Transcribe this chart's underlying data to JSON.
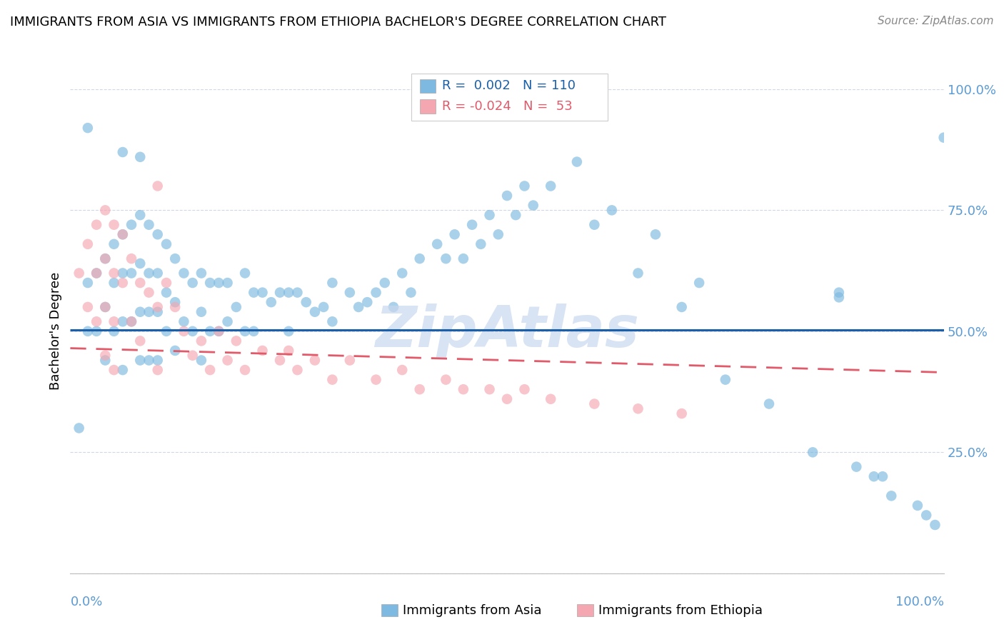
{
  "title": "IMMIGRANTS FROM ASIA VS IMMIGRANTS FROM ETHIOPIA BACHELOR'S DEGREE CORRELATION CHART",
  "source": "Source: ZipAtlas.com",
  "ylabel": "Bachelor's Degree",
  "color_asia": "#7db9e0",
  "color_ethiopia": "#f4a7b0",
  "trendline_asia_color": "#1a5fa8",
  "trendline_ethiopia_color": "#e05a6a",
  "background_color": "#ffffff",
  "watermark": "ZipAtlas",
  "asia_x": [
    0.01,
    0.02,
    0.02,
    0.03,
    0.03,
    0.04,
    0.04,
    0.04,
    0.05,
    0.05,
    0.05,
    0.06,
    0.06,
    0.06,
    0.06,
    0.07,
    0.07,
    0.07,
    0.08,
    0.08,
    0.08,
    0.08,
    0.09,
    0.09,
    0.09,
    0.09,
    0.1,
    0.1,
    0.1,
    0.1,
    0.11,
    0.11,
    0.11,
    0.12,
    0.12,
    0.12,
    0.13,
    0.13,
    0.14,
    0.14,
    0.15,
    0.15,
    0.15,
    0.16,
    0.16,
    0.17,
    0.17,
    0.18,
    0.18,
    0.19,
    0.2,
    0.2,
    0.21,
    0.21,
    0.22,
    0.23,
    0.24,
    0.25,
    0.25,
    0.26,
    0.27,
    0.28,
    0.29,
    0.3,
    0.3,
    0.32,
    0.33,
    0.34,
    0.35,
    0.36,
    0.37,
    0.38,
    0.39,
    0.4,
    0.42,
    0.43,
    0.44,
    0.45,
    0.46,
    0.47,
    0.48,
    0.49,
    0.5,
    0.51,
    0.52,
    0.53,
    0.55,
    0.58,
    0.6,
    0.62,
    0.65,
    0.67,
    0.7,
    0.72,
    0.75,
    0.8,
    0.85,
    0.88,
    0.9,
    0.92,
    0.94,
    0.97,
    0.98,
    0.99,
    1.0,
    0.02,
    0.06,
    0.08,
    0.88,
    0.93
  ],
  "asia_y": [
    0.3,
    0.6,
    0.5,
    0.62,
    0.5,
    0.65,
    0.55,
    0.44,
    0.68,
    0.6,
    0.5,
    0.7,
    0.62,
    0.52,
    0.42,
    0.72,
    0.62,
    0.52,
    0.74,
    0.64,
    0.54,
    0.44,
    0.72,
    0.62,
    0.54,
    0.44,
    0.7,
    0.62,
    0.54,
    0.44,
    0.68,
    0.58,
    0.5,
    0.65,
    0.56,
    0.46,
    0.62,
    0.52,
    0.6,
    0.5,
    0.62,
    0.54,
    0.44,
    0.6,
    0.5,
    0.6,
    0.5,
    0.6,
    0.52,
    0.55,
    0.62,
    0.5,
    0.58,
    0.5,
    0.58,
    0.56,
    0.58,
    0.58,
    0.5,
    0.58,
    0.56,
    0.54,
    0.55,
    0.6,
    0.52,
    0.58,
    0.55,
    0.56,
    0.58,
    0.6,
    0.55,
    0.62,
    0.58,
    0.65,
    0.68,
    0.65,
    0.7,
    0.65,
    0.72,
    0.68,
    0.74,
    0.7,
    0.78,
    0.74,
    0.8,
    0.76,
    0.8,
    0.85,
    0.72,
    0.75,
    0.62,
    0.7,
    0.55,
    0.6,
    0.4,
    0.35,
    0.25,
    0.58,
    0.22,
    0.2,
    0.16,
    0.14,
    0.12,
    0.1,
    0.9,
    0.92,
    0.87,
    0.86,
    0.57,
    0.2
  ],
  "ethiopia_x": [
    0.01,
    0.02,
    0.02,
    0.03,
    0.03,
    0.03,
    0.04,
    0.04,
    0.04,
    0.04,
    0.05,
    0.05,
    0.05,
    0.05,
    0.06,
    0.06,
    0.07,
    0.07,
    0.08,
    0.08,
    0.09,
    0.1,
    0.1,
    0.11,
    0.12,
    0.13,
    0.14,
    0.15,
    0.16,
    0.17,
    0.18,
    0.19,
    0.2,
    0.22,
    0.24,
    0.25,
    0.26,
    0.28,
    0.3,
    0.32,
    0.35,
    0.38,
    0.4,
    0.43,
    0.45,
    0.48,
    0.5,
    0.52,
    0.55,
    0.6,
    0.65,
    0.7,
    0.1
  ],
  "ethiopia_y": [
    0.62,
    0.68,
    0.55,
    0.72,
    0.62,
    0.52,
    0.75,
    0.65,
    0.55,
    0.45,
    0.72,
    0.62,
    0.52,
    0.42,
    0.7,
    0.6,
    0.65,
    0.52,
    0.6,
    0.48,
    0.58,
    0.55,
    0.42,
    0.6,
    0.55,
    0.5,
    0.45,
    0.48,
    0.42,
    0.5,
    0.44,
    0.48,
    0.42,
    0.46,
    0.44,
    0.46,
    0.42,
    0.44,
    0.4,
    0.44,
    0.4,
    0.42,
    0.38,
    0.4,
    0.38,
    0.38,
    0.36,
    0.38,
    0.36,
    0.35,
    0.34,
    0.33,
    0.8
  ],
  "asia_trend_y0": 0.502,
  "asia_trend_y1": 0.502,
  "eth_trend_y0": 0.465,
  "eth_trend_y1": 0.415,
  "xlim": [
    0.0,
    1.0
  ],
  "ylim": [
    0.0,
    1.0
  ],
  "yticks": [
    0.0,
    0.25,
    0.5,
    0.75,
    1.0
  ],
  "ytick_labels": [
    "",
    "25.0%",
    "50.0%",
    "75.0%",
    "100.0%"
  ],
  "grid_color": "#d0d8e8",
  "grid_linestyle": "--",
  "tick_color": "#5b9bd5",
  "title_fontsize": 13,
  "source_fontsize": 11,
  "label_fontsize": 13,
  "scatter_size": 110
}
